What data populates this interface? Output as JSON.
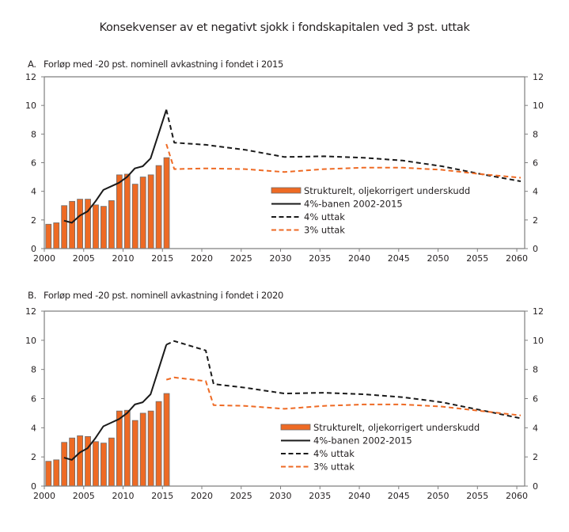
{
  "title": "Konsekvenser av et negativt sjokk i fondskapitalen ved 3 pst. uttak",
  "colors": {
    "bar_fill": "#EE6A24",
    "bar_stroke": "#6d6d6d",
    "line_black": "#1a1a1a",
    "line_orange": "#EE6A24",
    "axis": "#7f7f7f"
  },
  "chart_data": [
    {
      "panel_letter": "A.",
      "title": "Forløp med -20 pst. nominell avkastning i fondet i 2015",
      "type": "bar+line",
      "xlim": [
        2000,
        2061
      ],
      "ylim": [
        0,
        12
      ],
      "x_ticks": [
        2000,
        2005,
        2010,
        2015,
        2020,
        2025,
        2030,
        2035,
        2040,
        2045,
        2050,
        2055,
        2060
      ],
      "y_ticks": [
        0,
        2,
        4,
        6,
        8,
        10,
        12
      ],
      "y_ticks_right": [
        0,
        2,
        4,
        6,
        8,
        10,
        12
      ],
      "grid": false,
      "legend_position": "center-right",
      "legend": [
        {
          "label": "Strukturelt, oljekorrigert underskudd",
          "kind": "bar"
        },
        {
          "label": "4%-banen 2002-2015",
          "kind": "solid-black"
        },
        {
          "label": "4% uttak",
          "kind": "dashed-black"
        },
        {
          "label": "3% uttak",
          "kind": "dashed-orange"
        }
      ],
      "bars": {
        "name": "Strukturelt, oljekorrigert underskudd",
        "x": [
          2000,
          2001,
          2002,
          2003,
          2004,
          2005,
          2006,
          2007,
          2008,
          2009,
          2010,
          2011,
          2012,
          2013,
          2014,
          2015
        ],
        "values": [
          1.7,
          1.8,
          3.0,
          3.3,
          3.45,
          3.45,
          3.05,
          2.95,
          3.35,
          5.15,
          5.2,
          4.5,
          5.0,
          5.15,
          5.8,
          6.35
        ]
      },
      "series": [
        {
          "name": "4%-banen 2002-2015",
          "style": "solid-black",
          "x": [
            2002,
            2003,
            2004,
            2005,
            2006,
            2007,
            2008,
            2009,
            2010,
            2011,
            2012,
            2013,
            2014,
            2015
          ],
          "values": [
            1.95,
            1.8,
            2.3,
            2.6,
            3.3,
            4.1,
            4.35,
            4.6,
            5.0,
            5.6,
            5.75,
            6.3,
            8.0,
            9.7
          ]
        },
        {
          "name": "4% uttak",
          "style": "dashed-black",
          "x": [
            2015,
            2016,
            2020,
            2025,
            2030,
            2035,
            2040,
            2045,
            2050,
            2055,
            2060
          ],
          "values": [
            9.7,
            7.4,
            7.25,
            6.9,
            6.4,
            6.45,
            6.35,
            6.15,
            5.75,
            5.2,
            4.7
          ]
        },
        {
          "name": "3% uttak",
          "style": "dashed-orange",
          "x": [
            2015,
            2016,
            2020,
            2025,
            2030,
            2035,
            2040,
            2045,
            2050,
            2055,
            2060
          ],
          "values": [
            7.3,
            5.55,
            5.6,
            5.55,
            5.35,
            5.55,
            5.65,
            5.65,
            5.5,
            5.2,
            4.95
          ]
        }
      ]
    },
    {
      "panel_letter": "B.",
      "title": "Forløp med -20 pst. nominell avkastning i fondet i 2020",
      "type": "bar+line",
      "xlim": [
        2000,
        2061
      ],
      "ylim": [
        0,
        12
      ],
      "x_ticks": [
        2000,
        2005,
        2010,
        2015,
        2020,
        2025,
        2030,
        2035,
        2040,
        2045,
        2050,
        2055,
        2060
      ],
      "y_ticks": [
        0,
        2,
        4,
        6,
        8,
        10,
        12
      ],
      "y_ticks_right": [
        0,
        2,
        4,
        6,
        8,
        10,
        12
      ],
      "grid": false,
      "legend_position": "bottom-center-right",
      "legend": [
        {
          "label": "Strukturelt, oljekorrigert underskudd",
          "kind": "bar"
        },
        {
          "label": "4%-banen 2002-2015",
          "kind": "solid-black"
        },
        {
          "label": "4% uttak",
          "kind": "dashed-black"
        },
        {
          "label": "3% uttak",
          "kind": "dashed-orange"
        }
      ],
      "bars": {
        "name": "Strukturelt, oljekorrigert underskudd",
        "x": [
          2000,
          2001,
          2002,
          2003,
          2004,
          2005,
          2006,
          2007,
          2008,
          2009,
          2010,
          2011,
          2012,
          2013,
          2014,
          2015
        ],
        "values": [
          1.7,
          1.8,
          3.0,
          3.3,
          3.45,
          3.4,
          3.05,
          2.95,
          3.3,
          5.15,
          5.2,
          4.5,
          5.0,
          5.15,
          5.8,
          6.35
        ]
      },
      "series": [
        {
          "name": "4%-banen 2002-2015",
          "style": "solid-black",
          "x": [
            2002,
            2003,
            2004,
            2005,
            2006,
            2007,
            2008,
            2009,
            2010,
            2011,
            2012,
            2013,
            2014,
            2015
          ],
          "values": [
            1.95,
            1.8,
            2.3,
            2.6,
            3.3,
            4.1,
            4.35,
            4.6,
            5.0,
            5.6,
            5.75,
            6.3,
            8.0,
            9.7
          ]
        },
        {
          "name": "4% uttak",
          "style": "dashed-black",
          "x": [
            2015,
            2016,
            2020,
            2021,
            2025,
            2030,
            2035,
            2040,
            2045,
            2050,
            2055,
            2060
          ],
          "values": [
            9.7,
            9.95,
            9.3,
            7.0,
            6.75,
            6.35,
            6.4,
            6.3,
            6.1,
            5.75,
            5.2,
            4.65
          ]
        },
        {
          "name": "3% uttak",
          "style": "dashed-orange",
          "x": [
            2015,
            2016,
            2020,
            2021,
            2025,
            2030,
            2035,
            2040,
            2045,
            2050,
            2055,
            2060
          ],
          "values": [
            7.3,
            7.45,
            7.2,
            5.55,
            5.5,
            5.3,
            5.5,
            5.6,
            5.6,
            5.45,
            5.15,
            4.85
          ]
        }
      ]
    }
  ]
}
